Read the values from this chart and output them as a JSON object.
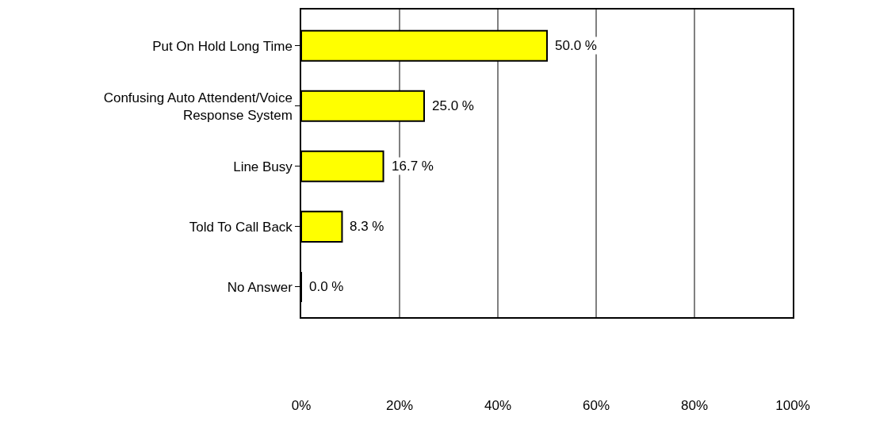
{
  "chart_data": {
    "type": "bar",
    "orientation": "horizontal",
    "categories": [
      "Put On Hold Long Time",
      "Confusing Auto Attendent/Voice Response System",
      "Line Busy",
      "Told To Call Back",
      "No Answer"
    ],
    "values": [
      50.0,
      25.0,
      16.7,
      8.3,
      0.0
    ],
    "value_labels": [
      "50.0 %",
      "25.0 %",
      "16.7 %",
      "8.3 %",
      "0.0 %"
    ],
    "color": "#ffff00",
    "xlim": [
      0,
      100
    ],
    "xticks": [
      {
        "value": 0,
        "label": "0%"
      },
      {
        "value": 20,
        "label": "20%"
      },
      {
        "value": 40,
        "label": "40%"
      },
      {
        "value": 60,
        "label": "60%"
      },
      {
        "value": 80,
        "label": "80%"
      },
      {
        "value": 100,
        "label": "100%"
      }
    ],
    "grid": "x",
    "legend": false
  }
}
